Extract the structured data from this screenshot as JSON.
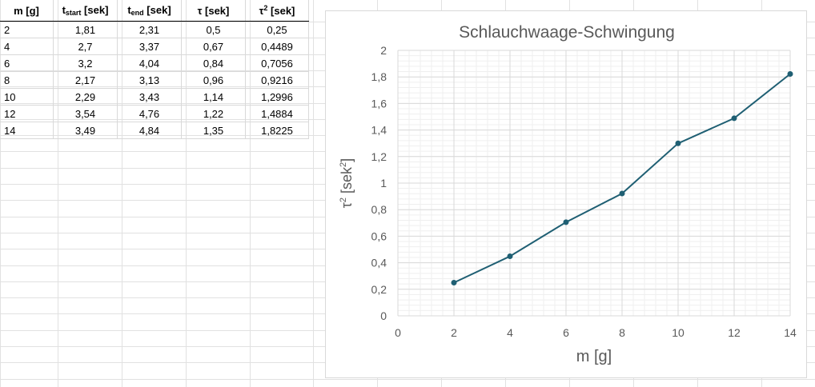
{
  "table": {
    "headers": [
      {
        "main": "m [g]",
        "sub": "",
        "sup": "",
        "suffix": ""
      },
      {
        "main": "t",
        "sub": "start",
        "sup": "",
        "suffix": " [sek]"
      },
      {
        "main": "t",
        "sub": "end",
        "sup": "",
        "suffix": " [sek]"
      },
      {
        "main": "τ [sek]",
        "sub": "",
        "sup": "",
        "suffix": ""
      },
      {
        "main": "τ",
        "sub": "",
        "sup": "2",
        "suffix": " [sek]"
      }
    ],
    "rows": [
      [
        "2",
        "1,81",
        "2,31",
        "0,5",
        "0,25"
      ],
      [
        "4",
        "2,7",
        "3,37",
        "0,67",
        "0,4489"
      ],
      [
        "6",
        "3,2",
        "4,04",
        "0,84",
        "0,7056"
      ],
      [
        "8",
        "2,17",
        "3,13",
        "0,96",
        "0,9216"
      ],
      [
        "10",
        "2,29",
        "3,43",
        "1,14",
        "1,2996"
      ],
      [
        "12",
        "3,54",
        "4,76",
        "1,22",
        "1,4884"
      ],
      [
        "14",
        "3,49",
        "4,84",
        "1,35",
        "1,8225"
      ]
    ]
  },
  "chart_data": {
    "type": "line",
    "title": "Schlauchwaage-Schwingung",
    "xlabel": "m [g]",
    "ylabel_main": "τ",
    "ylabel_sup": "2",
    "ylabel_rest": " [sek",
    "ylabel_sup2": "2",
    "ylabel_end": "]",
    "x": [
      2,
      4,
      6,
      8,
      10,
      12,
      14
    ],
    "series": [
      {
        "values": [
          0.25,
          0.4489,
          0.7056,
          0.9216,
          1.2996,
          1.4884,
          1.8225
        ]
      }
    ],
    "xlim": [
      0,
      14
    ],
    "ylim": [
      0,
      2
    ],
    "x_ticks": [
      0,
      2,
      4,
      6,
      8,
      10,
      12,
      14
    ],
    "x_tick_labels": [
      "0",
      "2",
      "4",
      "6",
      "8",
      "10",
      "12",
      "14"
    ],
    "y_ticks": [
      0,
      0.2,
      0.4,
      0.6,
      0.8,
      1,
      1.2,
      1.4,
      1.6,
      1.8,
      2
    ],
    "y_tick_labels": [
      "0",
      "0,2",
      "0,4",
      "0,6",
      "0,8",
      "1",
      "1,2",
      "1,4",
      "1,6",
      "1,8",
      "2"
    ],
    "grid": true,
    "legend": "none",
    "line_color": "#1f5f73",
    "marker_color": "#1f5f73"
  }
}
